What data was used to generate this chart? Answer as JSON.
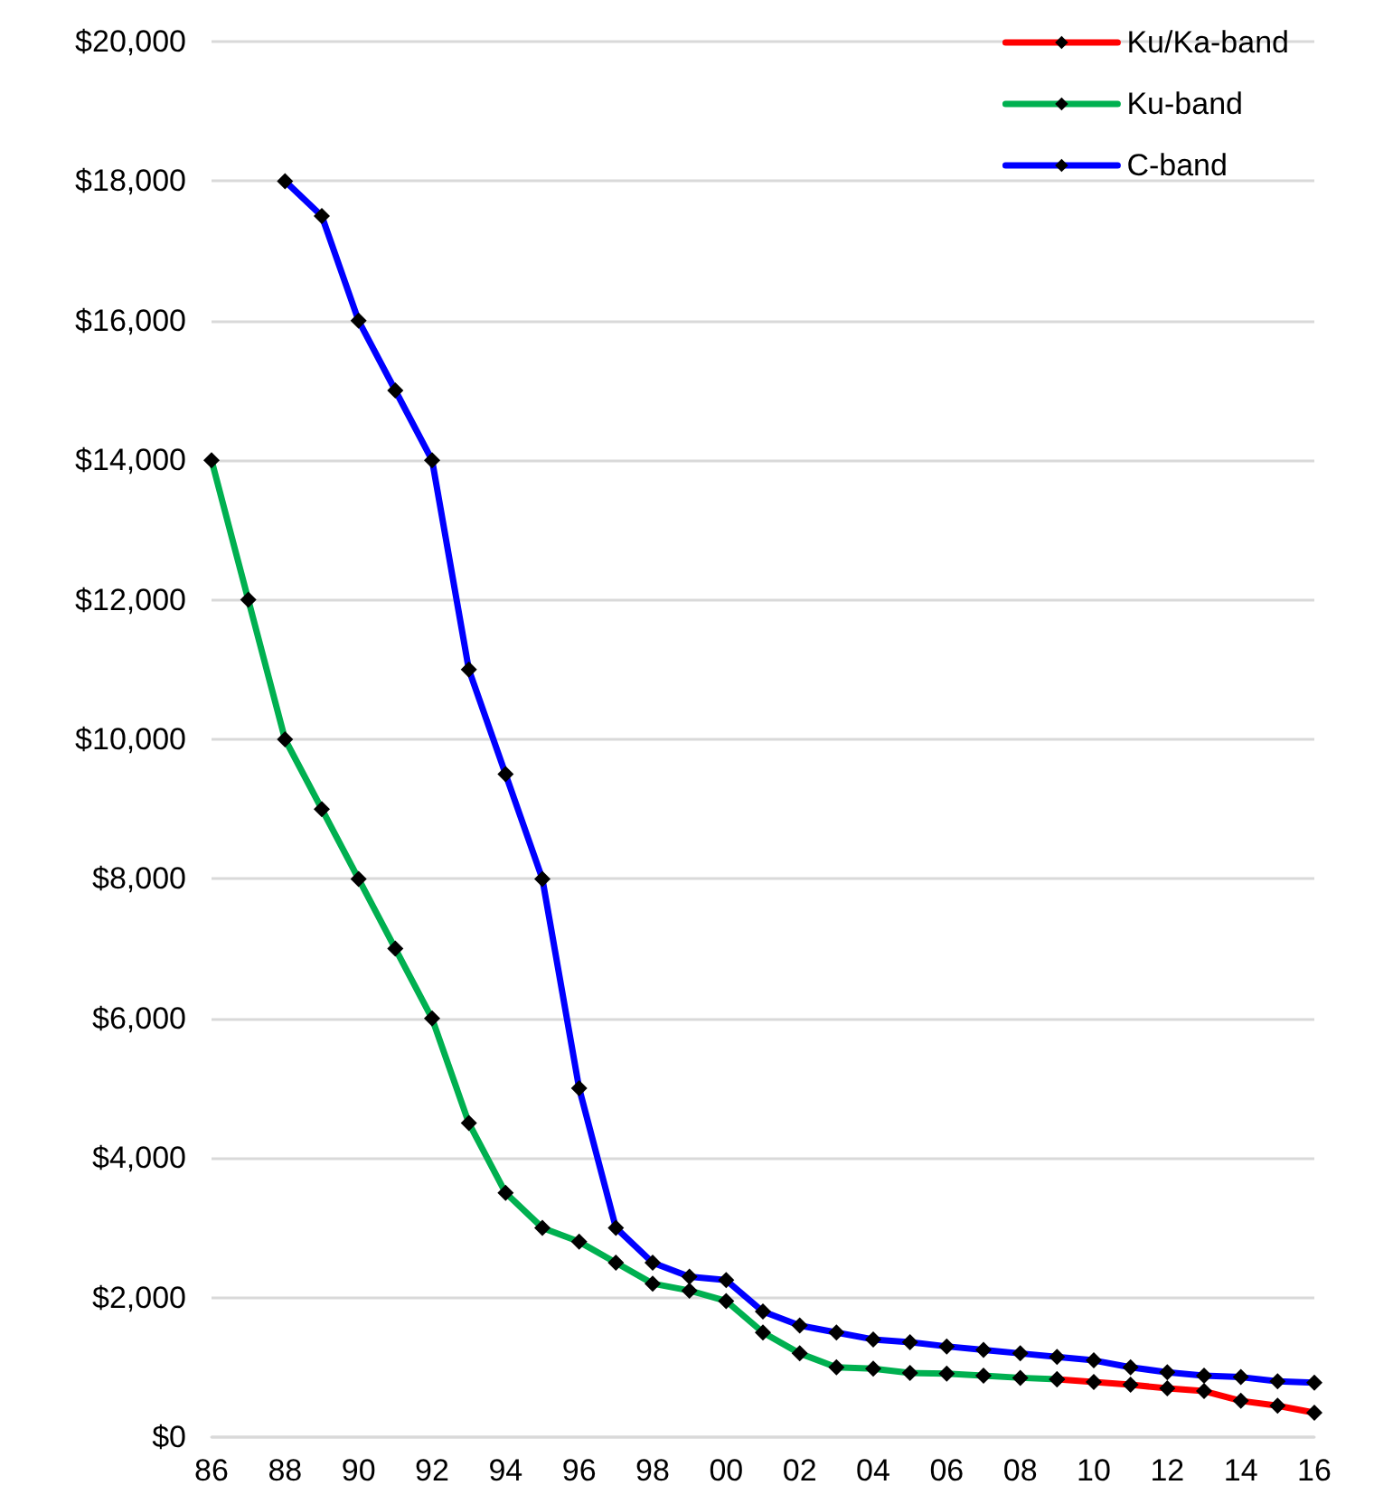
{
  "chart_data": {
    "type": "line",
    "categories": [
      "86",
      null,
      "88",
      null,
      "90",
      null,
      "92",
      null,
      "94",
      null,
      "96",
      null,
      "98",
      null,
      "00",
      null,
      "02",
      null,
      "04",
      null,
      "06",
      null,
      "08",
      null,
      "10",
      null,
      "12",
      null,
      "14",
      null,
      "16"
    ],
    "series": [
      {
        "name": "Ku/Ka-band",
        "color": "#ff0000",
        "values": [
          null,
          null,
          null,
          null,
          null,
          null,
          null,
          null,
          null,
          null,
          null,
          null,
          null,
          null,
          null,
          null,
          null,
          null,
          null,
          null,
          null,
          null,
          null,
          830,
          790,
          750,
          700,
          660,
          520,
          450,
          350
        ]
      },
      {
        "name": "Ku-band",
        "color": "#00b050",
        "values": [
          14000,
          12000,
          10000,
          9000,
          8000,
          7000,
          6000,
          4500,
          3500,
          3000,
          2800,
          2500,
          2200,
          2100,
          1950,
          1500,
          1200,
          1000,
          980,
          920,
          910,
          880,
          850,
          830,
          null,
          null,
          null,
          null,
          null,
          null,
          null
        ]
      },
      {
        "name": "C-band",
        "color": "#0000ff",
        "values": [
          null,
          null,
          18000,
          17500,
          16000,
          15000,
          14000,
          11000,
          9500,
          8000,
          5000,
          3000,
          2500,
          2300,
          2250,
          1800,
          1600,
          1500,
          1400,
          1360,
          1300,
          1250,
          1200,
          1150,
          1100,
          1000,
          930,
          880,
          860,
          800,
          780
        ]
      }
    ],
    "ylim": [
      0,
      20000
    ],
    "yticks": [
      {
        "value": 0,
        "label": "$0"
      },
      {
        "value": 2000,
        "label": "$2,000"
      },
      {
        "value": 4000,
        "label": "$4,000"
      },
      {
        "value": 6000,
        "label": "$6,000"
      },
      {
        "value": 8000,
        "label": "$8,000"
      },
      {
        "value": 10000,
        "label": "$10,000"
      },
      {
        "value": 12000,
        "label": "$12,000"
      },
      {
        "value": 14000,
        "label": "$14,000"
      },
      {
        "value": 16000,
        "label": "$16,000"
      },
      {
        "value": 18000,
        "label": "$18,000"
      },
      {
        "value": 20000,
        "label": "$20,000"
      }
    ],
    "grid": "y",
    "legend": "top right",
    "marker": "diamond",
    "line_style": "solid"
  }
}
